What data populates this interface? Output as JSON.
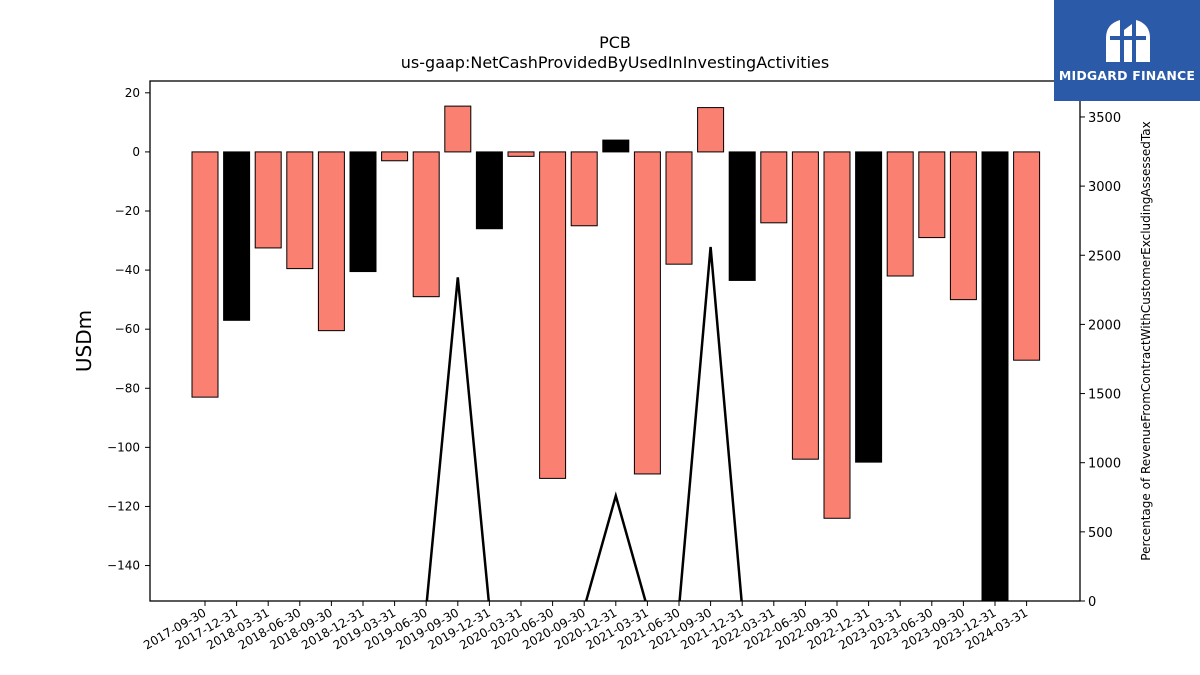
{
  "chart_data": {
    "type": "bar",
    "title": "PCB",
    "subtitle": "us-gaap:NetCashProvidedByUsedInInvestingActivities",
    "ylabel": "USDm",
    "y2label": "Percentage of RevenueFromContractWithCustomerExcludingAssessedTax",
    "ylim": [
      -152,
      24
    ],
    "y2lim": [
      0,
      3760
    ],
    "yticks": [
      20,
      0,
      -20,
      -40,
      -60,
      -80,
      -100,
      -120,
      -140
    ],
    "y2ticks": [
      0,
      500,
      1000,
      1500,
      2000,
      2500,
      3000,
      3500
    ],
    "categories": [
      "2017-09-30",
      "2017-12-31",
      "2018-03-31",
      "2018-06-30",
      "2018-09-30",
      "2018-12-31",
      "2019-03-31",
      "2019-06-30",
      "2019-09-30",
      "2019-12-31",
      "2020-03-31",
      "2020-06-30",
      "2020-09-30",
      "2020-12-31",
      "2021-03-31",
      "2021-06-30",
      "2021-09-30",
      "2021-12-31",
      "2022-03-31",
      "2022-06-30",
      "2022-09-30",
      "2022-12-31",
      "2023-03-31",
      "2023-06-30",
      "2023-09-30",
      "2023-12-31",
      "2024-03-31"
    ],
    "values": [
      -83.0,
      -57.0,
      -32.5,
      -39.5,
      -60.5,
      -40.5,
      -3.0,
      -49.0,
      15.5,
      -26.0,
      -1.5,
      -110.5,
      -25.0,
      4.0,
      -109.0,
      -38.0,
      15.0,
      -43.5,
      -24.0,
      -104.0,
      -124.0,
      -105.0,
      -42.0,
      -29.0,
      -50.0,
      -152,
      -70.5
    ],
    "bar_colors": [
      "#fa8072",
      "#000000",
      "#fa8072",
      "#fa8072",
      "#fa8072",
      "#000000",
      "#fa8072",
      "#fa8072",
      "#fa8072",
      "#000000",
      "#fa8072",
      "#fa8072",
      "#fa8072",
      "#000000",
      "#fa8072",
      "#fa8072",
      "#fa8072",
      "#000000",
      "#fa8072",
      "#fa8072",
      "#fa8072",
      "#000000",
      "#fa8072",
      "#fa8072",
      "#fa8072",
      "#000000",
      "#fa8072"
    ],
    "line": {
      "name": "Percentage of RevenueFromContractWithCustomerExcludingAssessedTax",
      "color": "#000000",
      "values": [
        -50,
        -50,
        -50,
        -50,
        -50,
        -50,
        -50,
        -50,
        2340,
        -50,
        -50,
        -50,
        -50,
        760,
        -50,
        -50,
        2560,
        -50,
        -50,
        -50,
        -50,
        -50,
        -50,
        -50,
        -50,
        -50,
        -50
      ]
    }
  },
  "logo": {
    "text": "MIDGARD FINANCE",
    "bg_color": "#2a5aa8"
  }
}
